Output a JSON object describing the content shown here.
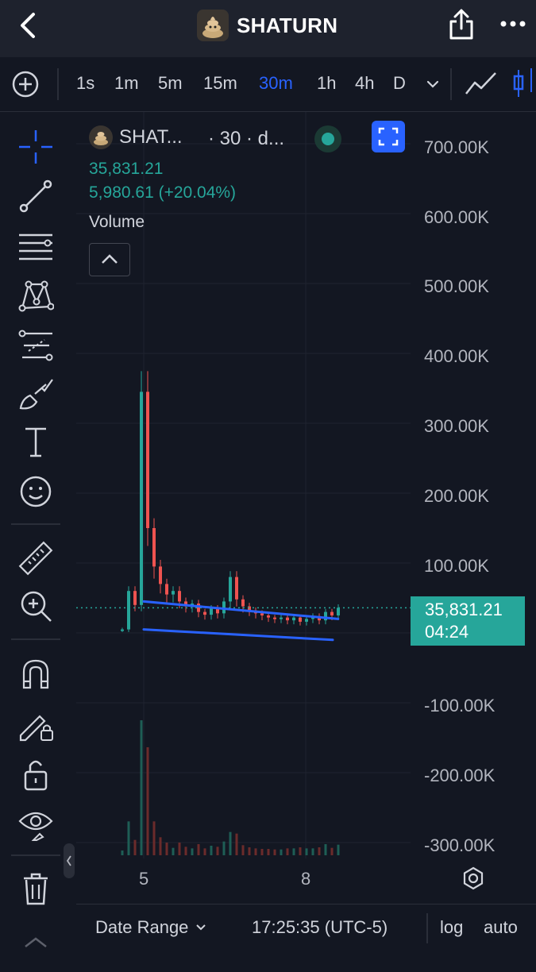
{
  "header": {
    "title": "SHATURN",
    "back_icon": "chevron-left-icon",
    "share_icon": "share-icon",
    "more_icon": "more-dots-icon"
  },
  "intervals": {
    "items": [
      "1s",
      "1m",
      "5m",
      "15m",
      "30m",
      "1h",
      "4h",
      "D"
    ],
    "active": "30m"
  },
  "legend": {
    "symbol": "SHAT...",
    "meta": "· 30 · d...",
    "price": "35,831.21",
    "change": "5,980.61 (+20.04%)",
    "volume_label": "Volume"
  },
  "chart_data": {
    "type": "candlestick",
    "y_ticks": [
      "700.00K",
      "600.00K",
      "500.00K",
      "400.00K",
      "300.00K",
      "200.00K",
      "100.00K",
      "-100.00K",
      "-200.00K",
      "-300.00K"
    ],
    "x_ticks": [
      "5",
      "8"
    ],
    "ylim": [
      -350000,
      750000
    ],
    "last_price": "35,831.21",
    "countdown": "04:24",
    "close_series": [
      5000,
      60000,
      40000,
      345000,
      150000,
      95000,
      70000,
      55000,
      60000,
      45000,
      38000,
      42000,
      30000,
      26000,
      35000,
      28000,
      45000,
      80000,
      48000,
      38000,
      32000,
      28000,
      25000,
      22000,
      20000,
      22000,
      18000,
      22000,
      16000,
      20000,
      24000,
      18000,
      30000,
      25000,
      36000
    ],
    "trendlines": [
      {
        "from": [
          "5",
          45000
        ],
        "to": [
          "8.6",
          20000
        ]
      },
      {
        "from": [
          "5",
          5000
        ],
        "to": [
          "8.5",
          -10000
        ]
      }
    ],
    "colors": {
      "up": "#26a69a",
      "down": "#ef5350",
      "trendline": "#2962ff"
    }
  },
  "bottom": {
    "date_range": "Date Range",
    "clock": "17:25:35 (UTC-5)",
    "log": "log",
    "auto": "auto"
  }
}
